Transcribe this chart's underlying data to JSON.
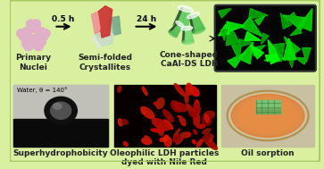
{
  "background_color": "#d8f0a0",
  "border_color": "#a8c860",
  "top_row": {
    "step1_label": "Primary\nNuclei",
    "step2_label": "Semi-folded\nCrystallites",
    "step3_label": "Cone-shaped\nCaAl-DS LDH",
    "arrow1_label": "0.5 h",
    "arrow2_label": "24 h"
  },
  "bottom_row": {
    "panel1_label": "Superhydrophobicity",
    "panel1_sublabel": "Water, θ = 140°",
    "panel2_label": "Oleophilic LDH particles\ndyed with Nile Red",
    "panel3_label": "Oil sorption"
  },
  "nuclei_color": "#e0b0c8",
  "label_fontsize": 6.5,
  "sublabel_fontsize": 5.0,
  "arrow_fontsize": 6.5
}
